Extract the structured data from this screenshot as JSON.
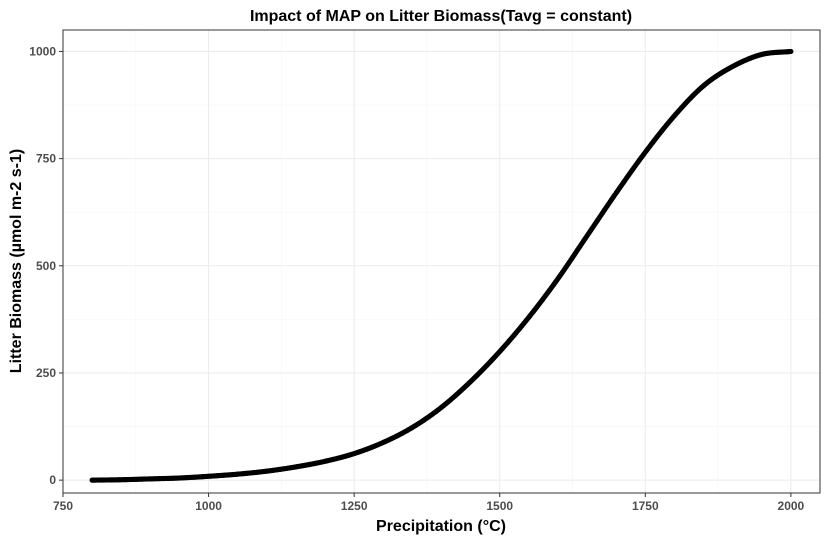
{
  "chart_data": {
    "type": "scatter",
    "title": "Impact of MAP on Litter Biomass(Tavg = constant)",
    "xlabel": "Precipitation (°C)",
    "ylabel": "Litter Biomass (µmol m-2 s-1)",
    "xlim": [
      750,
      2050
    ],
    "ylim": [
      -30,
      1050
    ],
    "x_ticks": [
      750,
      1000,
      1250,
      1500,
      1750,
      2000
    ],
    "y_ticks": [
      0,
      250,
      500,
      750,
      1000
    ],
    "grid": true,
    "legend": "none",
    "point_color": "#000000",
    "series": [
      {
        "x": [
          800,
          850,
          900,
          950,
          1000,
          1050,
          1100,
          1150,
          1200,
          1250,
          1300,
          1350,
          1400,
          1450,
          1500,
          1550,
          1600,
          1650,
          1700,
          1750,
          1800,
          1850,
          1900,
          1950,
          2000
        ],
        "y": [
          0,
          1,
          3,
          5,
          9,
          14,
          21,
          31,
          44,
          62,
          88,
          123,
          170,
          230,
          300,
          380,
          470,
          570,
          670,
          765,
          850,
          920,
          965,
          993,
          1000
        ]
      }
    ]
  }
}
